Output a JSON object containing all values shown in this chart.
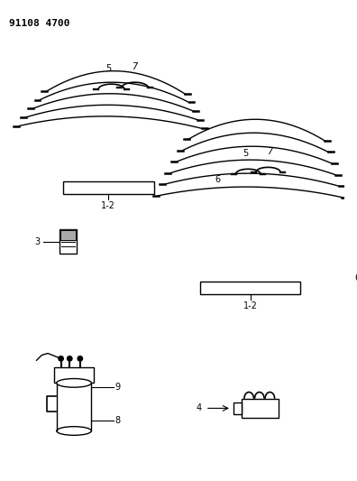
{
  "title": "91108 4700",
  "bg_color": "#ffffff",
  "text_color": "#000000",
  "line_color": "#000000",
  "title_fontsize": 8,
  "label_fontsize": 7,
  "fig_width": 3.96,
  "fig_height": 5.33,
  "dpi": 100
}
